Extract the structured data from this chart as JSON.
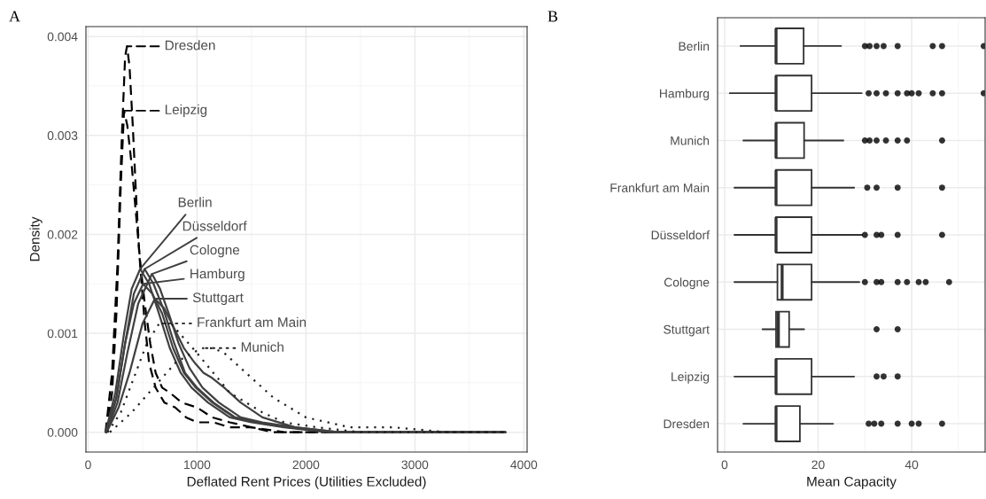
{
  "chart_data": [
    {
      "type": "line",
      "title": "A",
      "xlabel": "Deflated Rent Prices (Utilities Excluded)",
      "ylabel": "Density",
      "xlim": [
        -20,
        4030
      ],
      "ylim": [
        -0.0002,
        0.0041
      ],
      "xticks": [
        0,
        1000,
        2000,
        3000,
        4000
      ],
      "yticks": [
        {
          "value": 0,
          "label": "0.000"
        },
        {
          "value": 0.001,
          "label": "0.001"
        },
        {
          "value": 0.002,
          "label": "0.002"
        },
        {
          "value": 0.003,
          "label": "0.003"
        },
        {
          "value": 0.004,
          "label": "0.004"
        }
      ],
      "grid": true,
      "legend": "top",
      "series": [
        {
          "name": "Dresden",
          "color": "#000000",
          "line_style": "dashed",
          "x": [
            160,
            220,
            270,
            310,
            340,
            357,
            380,
            410,
            440,
            470,
            520,
            560,
            620,
            700,
            800,
            900,
            1000,
            1150,
            1300,
            1500,
            1800,
            2200,
            3000,
            3830
          ],
          "values": [
            0,
            0.0006,
            0.0017,
            0.003,
            0.0038,
            0.0039,
            0.0037,
            0.0031,
            0.0024,
            0.0018,
            0.0011,
            0.0007,
            0.00045,
            0.0003,
            0.00025,
            0.00015,
            0.0001,
            0.0001,
            5e-05,
            5e-05,
            0,
            0,
            0,
            0
          ]
        },
        {
          "name": "Leipzig",
          "color": "#000000",
          "line_style": "dashed",
          "x": [
            170,
            220,
            260,
            300,
            330,
            360,
            400,
            440,
            480,
            520,
            570,
            620,
            680,
            750,
            860,
            1000,
            1140,
            1300,
            1500,
            1700,
            2000,
            2500,
            3830
          ],
          "values": [
            0,
            0.0004,
            0.0012,
            0.0025,
            0.00325,
            0.0031,
            0.0027,
            0.0022,
            0.0017,
            0.0013,
            0.0009,
            0.0006,
            0.00045,
            0.0004,
            0.0003,
            0.00025,
            0.00015,
            0.0001,
            5e-05,
            0,
            0,
            0,
            0
          ]
        },
        {
          "name": "Berlin",
          "color": "#404040",
          "line_style": "solid",
          "x": [
            160,
            250,
            330,
            400,
            478,
            560,
            650,
            750,
            850,
            950,
            1100,
            1300,
            1500,
            1800,
            2200,
            3000,
            3830
          ],
          "values": [
            0,
            0.0004,
            0.001,
            0.00145,
            0.00165,
            0.0015,
            0.0012,
            0.00085,
            0.0006,
            0.00045,
            0.0003,
            0.00015,
            0.0001,
            5e-05,
            0,
            0,
            0
          ]
        },
        {
          "name": "Düsseldorf",
          "color": "#404040",
          "line_style": "solid",
          "x": [
            165,
            260,
            340,
            420,
            519,
            600,
            690,
            790,
            890,
            1000,
            1150,
            1350,
            1550,
            1850,
            2250,
            3000,
            3830
          ],
          "values": [
            0,
            0.00035,
            0.0009,
            0.0014,
            0.00165,
            0.0015,
            0.00125,
            0.0009,
            0.0006,
            0.00045,
            0.0003,
            0.00015,
            0.0001,
            5e-05,
            0,
            0,
            0
          ]
        },
        {
          "name": "Cologne",
          "color": "#404040",
          "line_style": "solid",
          "x": [
            170,
            270,
            360,
            460,
            586,
            660,
            740,
            830,
            930,
            1050,
            1200,
            1400,
            1600,
            1900,
            2300,
            3000,
            3830
          ],
          "values": [
            0,
            0.0003,
            0.0008,
            0.0013,
            0.0016,
            0.00145,
            0.0012,
            0.0009,
            0.00065,
            0.00045,
            0.0003,
            0.00015,
            0.0001,
            5e-05,
            0,
            0,
            0
          ]
        },
        {
          "name": "Hamburg",
          "color": "#404040",
          "line_style": "solid",
          "x": [
            165,
            260,
            340,
            420,
            505,
            590,
            680,
            780,
            880,
            990,
            1140,
            1340,
            1540,
            1840,
            2240,
            3000,
            3830
          ],
          "values": [
            0,
            0.00035,
            0.0009,
            0.0013,
            0.0015,
            0.0014,
            0.0012,
            0.00085,
            0.0006,
            0.00045,
            0.0003,
            0.00015,
            0.0001,
            5e-05,
            0,
            0,
            0
          ]
        },
        {
          "name": "Stuttgart",
          "color": "#404040",
          "line_style": "solid",
          "x": [
            170,
            280,
            380,
            500,
            613,
            700,
            790,
            880,
            980,
            1060,
            1137,
            1250,
            1400,
            1600,
            1900,
            2300,
            3000,
            3830
          ],
          "values": [
            0,
            0.00025,
            0.0006,
            0.0011,
            0.00135,
            0.00125,
            0.00105,
            0.00085,
            0.0007,
            0.0006,
            0.00055,
            0.00045,
            0.0003,
            0.00015,
            5e-05,
            0,
            0,
            0
          ]
        },
        {
          "name": "Frankfurt am Main",
          "color": "#202020",
          "line_style": "dotted",
          "x": [
            180,
            300,
            420,
            540,
            653,
            760,
            880,
            1000,
            1150,
            1300,
            1450,
            1600,
            1800,
            2100,
            2500,
            3000,
            3830
          ],
          "values": [
            0,
            0.0002,
            0.00055,
            0.0009,
            0.0011,
            0.0011,
            0.00095,
            0.0008,
            0.0006,
            0.0004,
            0.0003,
            0.0002,
            0.0001,
            5e-05,
            0,
            0,
            0
          ]
        },
        {
          "name": "Munich",
          "color": "#202020",
          "line_style": "dotted",
          "x": [
            200,
            400,
            600,
            800,
            950,
            1056,
            1150,
            1250,
            1450,
            1700,
            2000,
            2400,
            2800,
            3300,
            3830
          ],
          "values": [
            0,
            0.0002,
            0.00045,
            0.0007,
            0.0008,
            0.00085,
            0.00085,
            0.0008,
            0.0006,
            0.00035,
            0.00015,
            5e-05,
            5e-05,
            0,
            0
          ]
        }
      ]
    },
    {
      "type": "box",
      "title": "B",
      "xlabel": "Mean Capacity",
      "orientation": "horizontal",
      "xlim": [
        -1.5,
        55.7
      ],
      "xticks": [
        0,
        20,
        40
      ],
      "grid": true,
      "categories": [
        "Berlin",
        "Hamburg",
        "Munich",
        "Frankfurt am Main",
        "Düsseldorf",
        "Cologne",
        "Stuttgart",
        "Leipzig",
        "Dresden"
      ],
      "boxes": [
        {
          "low": 3.4,
          "q1": 11,
          "median": 11,
          "q3": 16.9,
          "high": 24.9,
          "outliers": [
            30,
            31,
            32.5,
            34,
            37,
            44.5,
            46.5,
            55.4
          ]
        },
        {
          "low": 1.1,
          "q1": 11,
          "median": 11,
          "q3": 18.6,
          "high": 29.3,
          "outliers": [
            30.8,
            32.5,
            34.5,
            37,
            39,
            40,
            41.5,
            44.5,
            46.5,
            55.4
          ]
        },
        {
          "low": 4,
          "q1": 11,
          "median": 11,
          "q3": 17,
          "high": 25.4,
          "outliers": [
            30,
            31,
            32.5,
            34.5,
            37,
            39,
            46.5
          ]
        },
        {
          "low": 2.1,
          "q1": 11,
          "median": 11,
          "q3": 18.6,
          "high": 27.7,
          "outliers": [
            30.5,
            32.5,
            37,
            46.5
          ]
        },
        {
          "low": 2.1,
          "q1": 11,
          "median": 11,
          "q3": 18.6,
          "high": 29.4,
          "outliers": [
            30,
            32.5,
            33.5,
            37,
            46.5
          ]
        },
        {
          "low": 2.1,
          "q1": 11.3,
          "median": 12.3,
          "q3": 18.6,
          "high": 28.8,
          "outliers": [
            30,
            32.5,
            33.5,
            37,
            39,
            41.5,
            43,
            48
          ]
        },
        {
          "low": 8.1,
          "q1": 11,
          "median": 11.5,
          "q3": 13.8,
          "high": 17,
          "outliers": [
            32.5,
            37
          ]
        },
        {
          "low": 2.1,
          "q1": 11,
          "median": 11,
          "q3": 18.6,
          "high": 27.7,
          "outliers": [
            32.5,
            34,
            37
          ]
        },
        {
          "low": 4,
          "q1": 11,
          "median": 11,
          "q3": 16.1,
          "high": 23.2,
          "outliers": [
            30.8,
            32,
            33.5,
            37,
            40,
            41.5,
            46.5
          ]
        }
      ]
    }
  ]
}
